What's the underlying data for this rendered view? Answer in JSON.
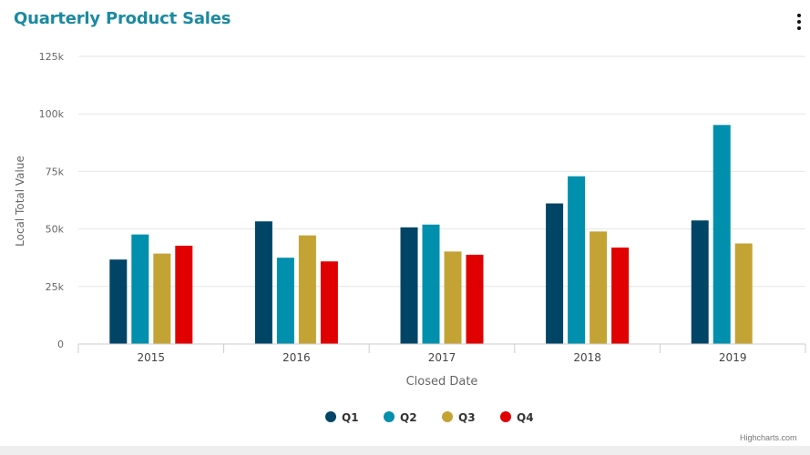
{
  "header": {
    "title": "Quarterly Product Sales",
    "menu_icon": "vertical-ellipsis-icon"
  },
  "credit": "Highcharts.com",
  "chart_data": {
    "type": "bar",
    "title": "Quarterly Product Sales",
    "xlabel": "Closed Date",
    "ylabel": "Local Total Value",
    "categories": [
      "2015",
      "2016",
      "2017",
      "2018",
      "2019"
    ],
    "ylim": [
      0,
      125000
    ],
    "yticks": [
      0,
      25000,
      50000,
      75000,
      100000,
      125000
    ],
    "ytick_labels": [
      "0",
      "25k",
      "50k",
      "75k",
      "100k",
      "125k"
    ],
    "grid": true,
    "legend_position": "bottom-center",
    "series": [
      {
        "name": "Q1",
        "color": "#004466",
        "values": [
          36700,
          53300,
          50700,
          61100,
          53700
        ]
      },
      {
        "name": "Q2",
        "color": "#008fad",
        "values": [
          47600,
          37500,
          51900,
          72900,
          95200
        ]
      },
      {
        "name": "Q3",
        "color": "#c4a335",
        "values": [
          39300,
          47200,
          40200,
          48900,
          43700
        ]
      },
      {
        "name": "Q4",
        "color": "#e00000",
        "values": [
          42700,
          35900,
          38800,
          41900,
          null
        ]
      }
    ]
  }
}
